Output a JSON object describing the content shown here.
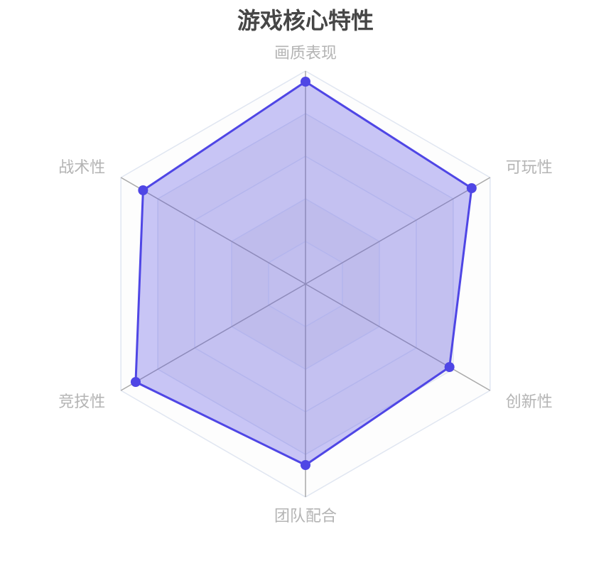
{
  "chart_data": {
    "type": "radar",
    "title": "游戏核心特性",
    "indicators": [
      "画质表现",
      "可玩性",
      "创新性",
      "团队配合",
      "竞技性",
      "战术性"
    ],
    "max": 100,
    "split_number": 5,
    "series": [
      {
        "values": [
          95,
          90,
          78,
          85,
          92,
          88
        ]
      }
    ],
    "colors": {
      "line": "#4f46e5",
      "fill": "rgba(79,70,229,0.3)",
      "split_line": "#e0e6f1",
      "axis_line": "#aaaaaa",
      "label": "#b4b4b4",
      "title": "#464646"
    },
    "legend": "none"
  }
}
